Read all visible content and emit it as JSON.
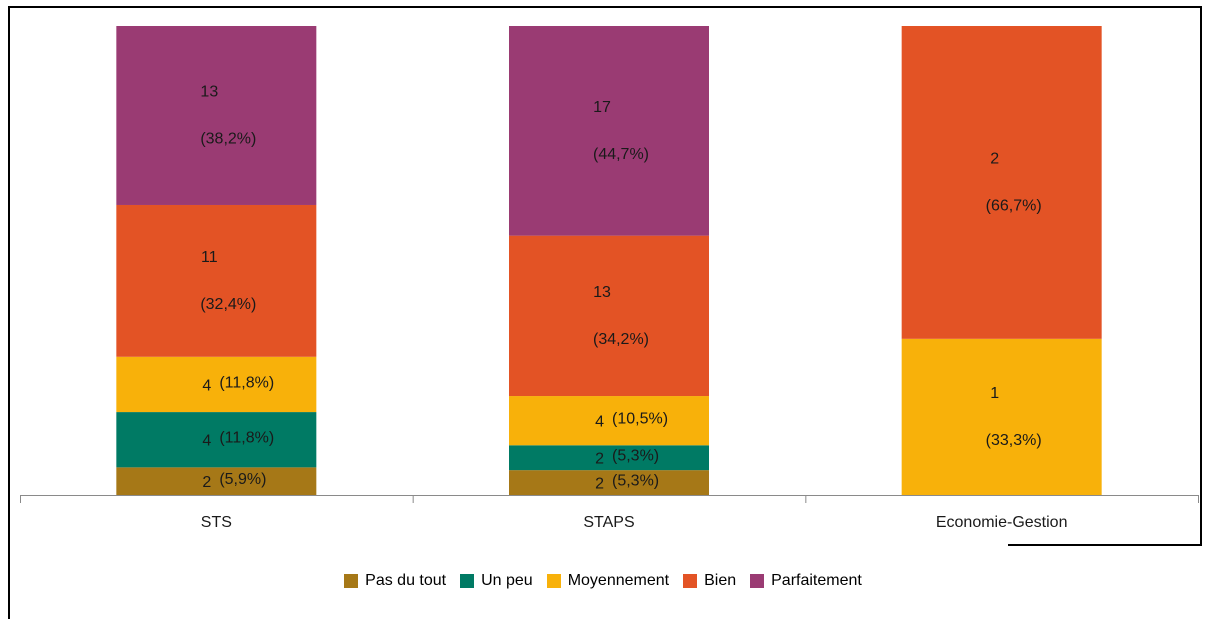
{
  "chart_data": {
    "type": "bar",
    "stacked": true,
    "categories": [
      "STS",
      "STAPS",
      "Economie-Gestion"
    ],
    "series": [
      {
        "name": "Pas du tout",
        "color": "#a67817",
        "values": [
          5.9,
          5.3,
          0
        ],
        "counts": [
          "2",
          "2",
          ""
        ],
        "pct_labels": [
          "(5,9%)",
          "(5,3%)",
          ""
        ]
      },
      {
        "name": "Un peu",
        "color": "#007a64",
        "values": [
          11.8,
          5.3,
          0
        ],
        "counts": [
          "4",
          "2",
          ""
        ],
        "pct_labels": [
          "(11,8%)",
          "(5,3%)",
          ""
        ]
      },
      {
        "name": "Moyennement",
        "color": "#f8b10a",
        "values": [
          11.8,
          10.5,
          33.3
        ],
        "counts": [
          "4",
          "4",
          "1"
        ],
        "pct_labels": [
          "(11,8%)",
          "(10,5%)",
          "(33,3%)"
        ]
      },
      {
        "name": "Bien",
        "color": "#e35325",
        "values": [
          32.4,
          34.2,
          66.7
        ],
        "counts": [
          "11",
          "13",
          "2"
        ],
        "pct_labels": [
          "(32,4%)",
          "(34,2%)",
          "(66,7%)"
        ]
      },
      {
        "name": "Parfaitement",
        "color": "#9a3b73",
        "values": [
          38.2,
          44.7,
          0
        ],
        "counts": [
          "13",
          "17",
          ""
        ],
        "pct_labels": [
          "(38,2%)",
          "(44,7%)",
          ""
        ]
      }
    ],
    "ylim": [
      0,
      100
    ],
    "legend_position": "bottom",
    "grid": false
  }
}
